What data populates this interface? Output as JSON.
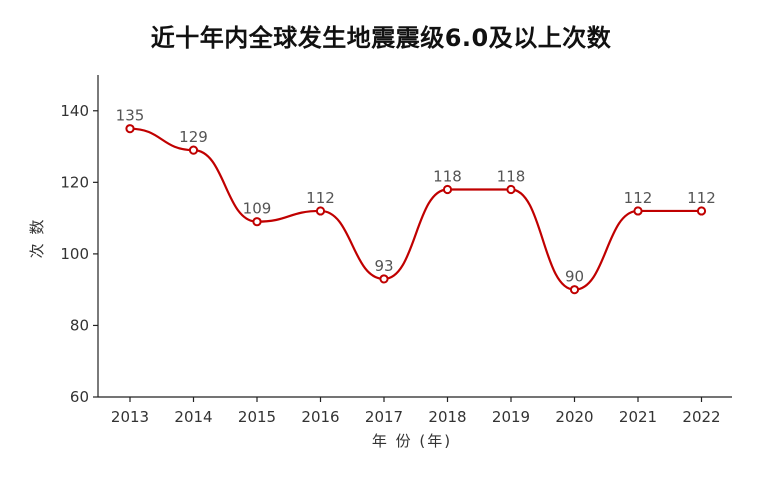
{
  "chart_data": {
    "type": "line",
    "title": "近十年内全球发生地震震级6.0及以上次数",
    "xlabel": "年 份 (年)",
    "ylabel": "次 数",
    "categories": [
      "2013",
      "2014",
      "2015",
      "2016",
      "2017",
      "2018",
      "2019",
      "2020",
      "2021",
      "2022"
    ],
    "series": [
      {
        "values": [
          135,
          129,
          109,
          112,
          93,
          118,
          118,
          90,
          112,
          112
        ]
      }
    ],
    "ylim": [
      60,
      150
    ],
    "yticks": [
      "60",
      "80",
      "100",
      "120",
      "140"
    ],
    "grid": false,
    "smooth": true,
    "data_labels": true,
    "line_color": "#c00000"
  }
}
